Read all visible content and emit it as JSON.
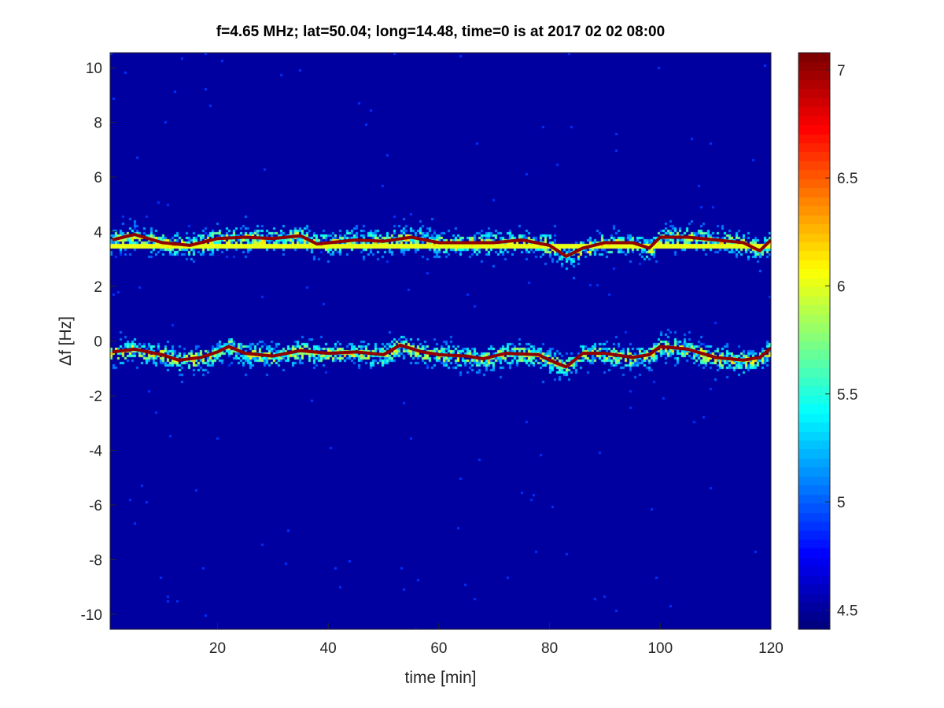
{
  "chart_data": {
    "type": "heatmap",
    "title": "f=4.65 MHz;  lat=50.04; long=14.48, time=0 is at 2017 02 02 08:00",
    "xlabel": "time [min]",
    "ylabel": "Δf [Hz]",
    "xlim": [
      0.6,
      120
    ],
    "ylim": [
      -10.55,
      10.55
    ],
    "xticks": [
      20,
      40,
      60,
      80,
      100,
      120
    ],
    "yticks": [
      -10,
      -8,
      -6,
      -4,
      -2,
      0,
      2,
      4,
      6,
      8,
      10
    ],
    "colormap": "jet",
    "clim": [
      4.41,
      7.08
    ],
    "colorbar_ticks": [
      4.5,
      5,
      5.5,
      6,
      6.5,
      7
    ],
    "background_value": 4.5,
    "ridge_value": 7.0,
    "reference_line_df": 3.5,
    "traces": [
      {
        "time": [
          1,
          5,
          10,
          15,
          20,
          25,
          30,
          35,
          38,
          45,
          50,
          55,
          60,
          65,
          70,
          75,
          80,
          83,
          86,
          90,
          95,
          98,
          100,
          105,
          110,
          115,
          118,
          120
        ],
        "df": [
          3.7,
          3.9,
          3.6,
          3.5,
          3.75,
          3.8,
          3.75,
          3.85,
          3.55,
          3.7,
          3.65,
          3.8,
          3.6,
          3.6,
          3.6,
          3.7,
          3.5,
          3.1,
          3.4,
          3.6,
          3.6,
          3.4,
          3.8,
          3.8,
          3.7,
          3.6,
          3.3,
          3.7
        ]
      },
      {
        "time": [
          1,
          5,
          10,
          13,
          17,
          20,
          22,
          25,
          30,
          35,
          40,
          45,
          50,
          53,
          57,
          60,
          65,
          68,
          72,
          78,
          80,
          83,
          86,
          90,
          95,
          98,
          100,
          105,
          110,
          115,
          118,
          120
        ],
        "df": [
          -0.4,
          -0.3,
          -0.5,
          -0.7,
          -0.6,
          -0.4,
          -0.2,
          -0.45,
          -0.55,
          -0.35,
          -0.45,
          -0.4,
          -0.5,
          -0.15,
          -0.4,
          -0.5,
          -0.55,
          -0.65,
          -0.45,
          -0.5,
          -0.7,
          -0.95,
          -0.45,
          -0.45,
          -0.6,
          -0.5,
          -0.2,
          -0.3,
          -0.6,
          -0.7,
          -0.6,
          -0.25
        ]
      }
    ]
  }
}
